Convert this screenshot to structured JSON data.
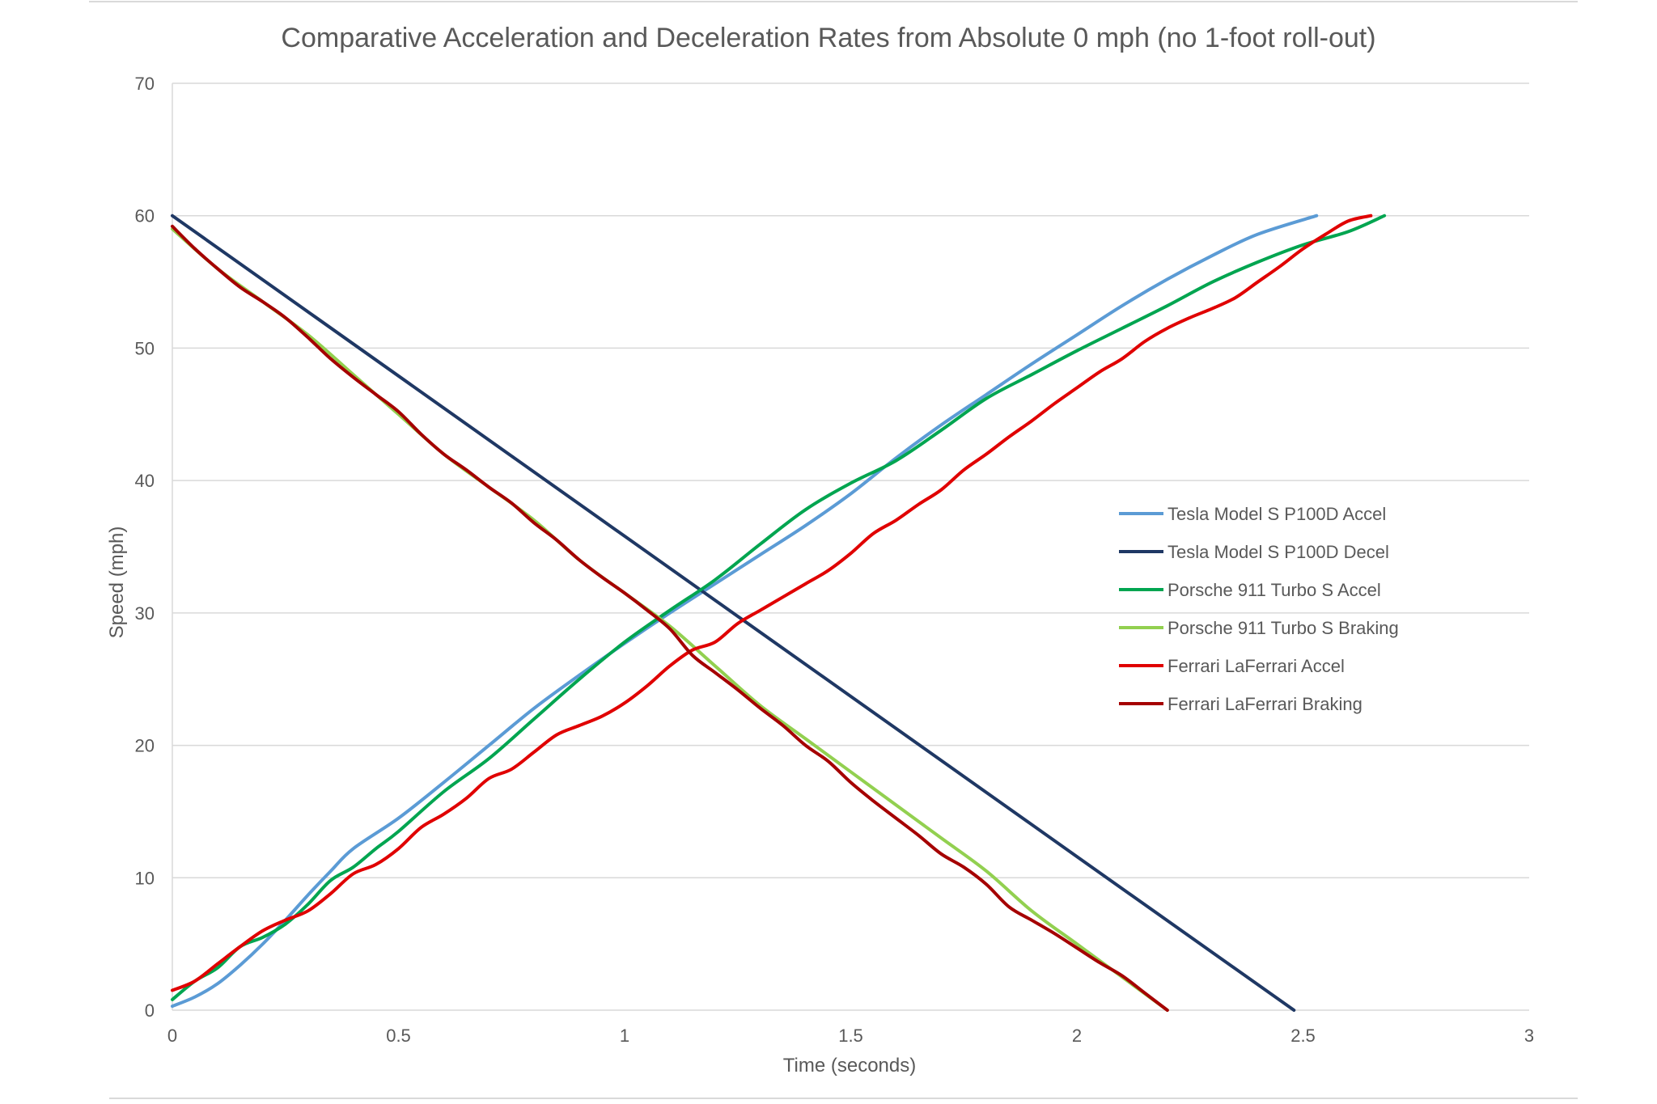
{
  "chart_data": {
    "type": "line",
    "title": "Comparative Acceleration and Deceleration Rates from Absolute 0  mph (no 1-foot roll-out)",
    "xlabel": "Time (seconds)",
    "ylabel": "Speed (mph)",
    "xlim": [
      0,
      3
    ],
    "ylim": [
      0,
      70
    ],
    "x_ticks": [
      0,
      0.5,
      1,
      1.5,
      2,
      2.5,
      3
    ],
    "x_tick_labels": [
      "0",
      "0.5",
      "1",
      "1.5",
      "2",
      "2.5",
      "3"
    ],
    "y_ticks": [
      0,
      10,
      20,
      30,
      40,
      50,
      60,
      70
    ],
    "y_tick_labels": [
      "0",
      "10",
      "20",
      "30",
      "40",
      "50",
      "60",
      "70"
    ],
    "grid": "horizontal",
    "legend_position": "right",
    "series": [
      {
        "name": "Tesla Model S P100D Accel",
        "color": "#5b9bd5",
        "points": [
          [
            0,
            0.3
          ],
          [
            0.05,
            1
          ],
          [
            0.1,
            2
          ],
          [
            0.15,
            3.4
          ],
          [
            0.2,
            5
          ],
          [
            0.25,
            6.8
          ],
          [
            0.3,
            8.7
          ],
          [
            0.35,
            10.5
          ],
          [
            0.4,
            12.2
          ],
          [
            0.5,
            14.5
          ],
          [
            0.6,
            17.2
          ],
          [
            0.7,
            20
          ],
          [
            0.8,
            22.8
          ],
          [
            0.9,
            25.3
          ],
          [
            1,
            27.7
          ],
          [
            1.1,
            30
          ],
          [
            1.2,
            32.2
          ],
          [
            1.3,
            34.4
          ],
          [
            1.4,
            36.6
          ],
          [
            1.5,
            39
          ],
          [
            1.6,
            41.7
          ],
          [
            1.7,
            44.2
          ],
          [
            1.8,
            46.5
          ],
          [
            1.9,
            48.8
          ],
          [
            2,
            51
          ],
          [
            2.1,
            53.2
          ],
          [
            2.2,
            55.2
          ],
          [
            2.3,
            57
          ],
          [
            2.4,
            58.6
          ],
          [
            2.53,
            60
          ]
        ]
      },
      {
        "name": "Tesla Model S P100D Decel",
        "color": "#1f3864",
        "points": [
          [
            0,
            60
          ],
          [
            0.5,
            47.9
          ],
          [
            1,
            35.8
          ],
          [
            1.5,
            23.7
          ],
          [
            2,
            11.6
          ],
          [
            2.48,
            0
          ]
        ]
      },
      {
        "name": "Porsche 911 Turbo S Accel",
        "color": "#00a550",
        "points": [
          [
            0,
            0.8
          ],
          [
            0.05,
            2.2
          ],
          [
            0.1,
            3.2
          ],
          [
            0.15,
            4.8
          ],
          [
            0.2,
            5.5
          ],
          [
            0.25,
            6.5
          ],
          [
            0.3,
            8
          ],
          [
            0.35,
            9.8
          ],
          [
            0.4,
            10.8
          ],
          [
            0.45,
            12.2
          ],
          [
            0.5,
            13.5
          ],
          [
            0.6,
            16.5
          ],
          [
            0.7,
            19
          ],
          [
            0.8,
            22
          ],
          [
            0.9,
            25
          ],
          [
            1,
            27.8
          ],
          [
            1.1,
            30.2
          ],
          [
            1.2,
            32.5
          ],
          [
            1.3,
            35.2
          ],
          [
            1.4,
            37.8
          ],
          [
            1.5,
            39.8
          ],
          [
            1.6,
            41.5
          ],
          [
            1.7,
            43.8
          ],
          [
            1.8,
            46.2
          ],
          [
            1.9,
            48
          ],
          [
            2,
            49.8
          ],
          [
            2.1,
            51.5
          ],
          [
            2.2,
            53.2
          ],
          [
            2.3,
            55
          ],
          [
            2.4,
            56.5
          ],
          [
            2.5,
            57.8
          ],
          [
            2.6,
            58.8
          ],
          [
            2.68,
            60
          ]
        ]
      },
      {
        "name": "Porsche 911 Turbo S Braking",
        "color": "#92d050",
        "points": [
          [
            0,
            59
          ],
          [
            0.1,
            56
          ],
          [
            0.2,
            53.5
          ],
          [
            0.3,
            51
          ],
          [
            0.4,
            48
          ],
          [
            0.5,
            45
          ],
          [
            0.6,
            42
          ],
          [
            0.7,
            39.5
          ],
          [
            0.8,
            37
          ],
          [
            0.9,
            34
          ],
          [
            1,
            31.5
          ],
          [
            1.1,
            29
          ],
          [
            1.2,
            26
          ],
          [
            1.3,
            23
          ],
          [
            1.4,
            20.5
          ],
          [
            1.5,
            18
          ],
          [
            1.6,
            15.5
          ],
          [
            1.7,
            13
          ],
          [
            1.8,
            10.5
          ],
          [
            1.9,
            7.5
          ],
          [
            2,
            5
          ],
          [
            2.1,
            2.5
          ],
          [
            2.2,
            0
          ]
        ]
      },
      {
        "name": "Ferrari LaFerrari Accel",
        "color": "#e00000",
        "points": [
          [
            0,
            1.5
          ],
          [
            0.05,
            2.2
          ],
          [
            0.1,
            3.5
          ],
          [
            0.15,
            4.8
          ],
          [
            0.2,
            6
          ],
          [
            0.25,
            6.8
          ],
          [
            0.3,
            7.5
          ],
          [
            0.35,
            8.8
          ],
          [
            0.4,
            10.3
          ],
          [
            0.45,
            11
          ],
          [
            0.5,
            12.2
          ],
          [
            0.55,
            13.8
          ],
          [
            0.6,
            14.8
          ],
          [
            0.65,
            16
          ],
          [
            0.7,
            17.5
          ],
          [
            0.75,
            18.2
          ],
          [
            0.8,
            19.5
          ],
          [
            0.85,
            20.8
          ],
          [
            0.9,
            21.5
          ],
          [
            0.95,
            22.2
          ],
          [
            1,
            23.2
          ],
          [
            1.05,
            24.5
          ],
          [
            1.1,
            26
          ],
          [
            1.15,
            27.2
          ],
          [
            1.2,
            27.8
          ],
          [
            1.25,
            29.2
          ],
          [
            1.3,
            30.2
          ],
          [
            1.35,
            31.2
          ],
          [
            1.4,
            32.2
          ],
          [
            1.45,
            33.2
          ],
          [
            1.5,
            34.5
          ],
          [
            1.55,
            36
          ],
          [
            1.6,
            37
          ],
          [
            1.65,
            38.2
          ],
          [
            1.7,
            39.3
          ],
          [
            1.75,
            40.8
          ],
          [
            1.8,
            42
          ],
          [
            1.85,
            43.3
          ],
          [
            1.9,
            44.5
          ],
          [
            1.95,
            45.8
          ],
          [
            2,
            47
          ],
          [
            2.05,
            48.2
          ],
          [
            2.1,
            49.2
          ],
          [
            2.15,
            50.5
          ],
          [
            2.2,
            51.5
          ],
          [
            2.25,
            52.3
          ],
          [
            2.3,
            53
          ],
          [
            2.35,
            53.8
          ],
          [
            2.4,
            55
          ],
          [
            2.45,
            56.2
          ],
          [
            2.5,
            57.5
          ],
          [
            2.55,
            58.6
          ],
          [
            2.6,
            59.6
          ],
          [
            2.65,
            60
          ]
        ]
      },
      {
        "name": "Ferrari LaFerrari Braking",
        "color": "#a50000",
        "points": [
          [
            0,
            59.2
          ],
          [
            0.05,
            57.5
          ],
          [
            0.1,
            56
          ],
          [
            0.15,
            54.6
          ],
          [
            0.2,
            53.5
          ],
          [
            0.25,
            52.3
          ],
          [
            0.3,
            50.8
          ],
          [
            0.35,
            49.2
          ],
          [
            0.4,
            47.8
          ],
          [
            0.45,
            46.5
          ],
          [
            0.5,
            45.2
          ],
          [
            0.55,
            43.5
          ],
          [
            0.6,
            42
          ],
          [
            0.65,
            40.8
          ],
          [
            0.7,
            39.5
          ],
          [
            0.75,
            38.3
          ],
          [
            0.8,
            36.8
          ],
          [
            0.85,
            35.5
          ],
          [
            0.9,
            34
          ],
          [
            0.95,
            32.7
          ],
          [
            1,
            31.5
          ],
          [
            1.05,
            30.2
          ],
          [
            1.1,
            28.8
          ],
          [
            1.15,
            26.8
          ],
          [
            1.2,
            25.5
          ],
          [
            1.25,
            24.2
          ],
          [
            1.3,
            22.8
          ],
          [
            1.35,
            21.5
          ],
          [
            1.4,
            20
          ],
          [
            1.45,
            18.8
          ],
          [
            1.5,
            17.2
          ],
          [
            1.55,
            15.8
          ],
          [
            1.6,
            14.5
          ],
          [
            1.65,
            13.2
          ],
          [
            1.7,
            11.8
          ],
          [
            1.75,
            10.8
          ],
          [
            1.8,
            9.5
          ],
          [
            1.85,
            7.8
          ],
          [
            1.9,
            6.8
          ],
          [
            1.95,
            5.8
          ],
          [
            2,
            4.7
          ],
          [
            2.05,
            3.6
          ],
          [
            2.1,
            2.6
          ],
          [
            2.15,
            1.3
          ],
          [
            2.2,
            0
          ]
        ]
      }
    ]
  }
}
